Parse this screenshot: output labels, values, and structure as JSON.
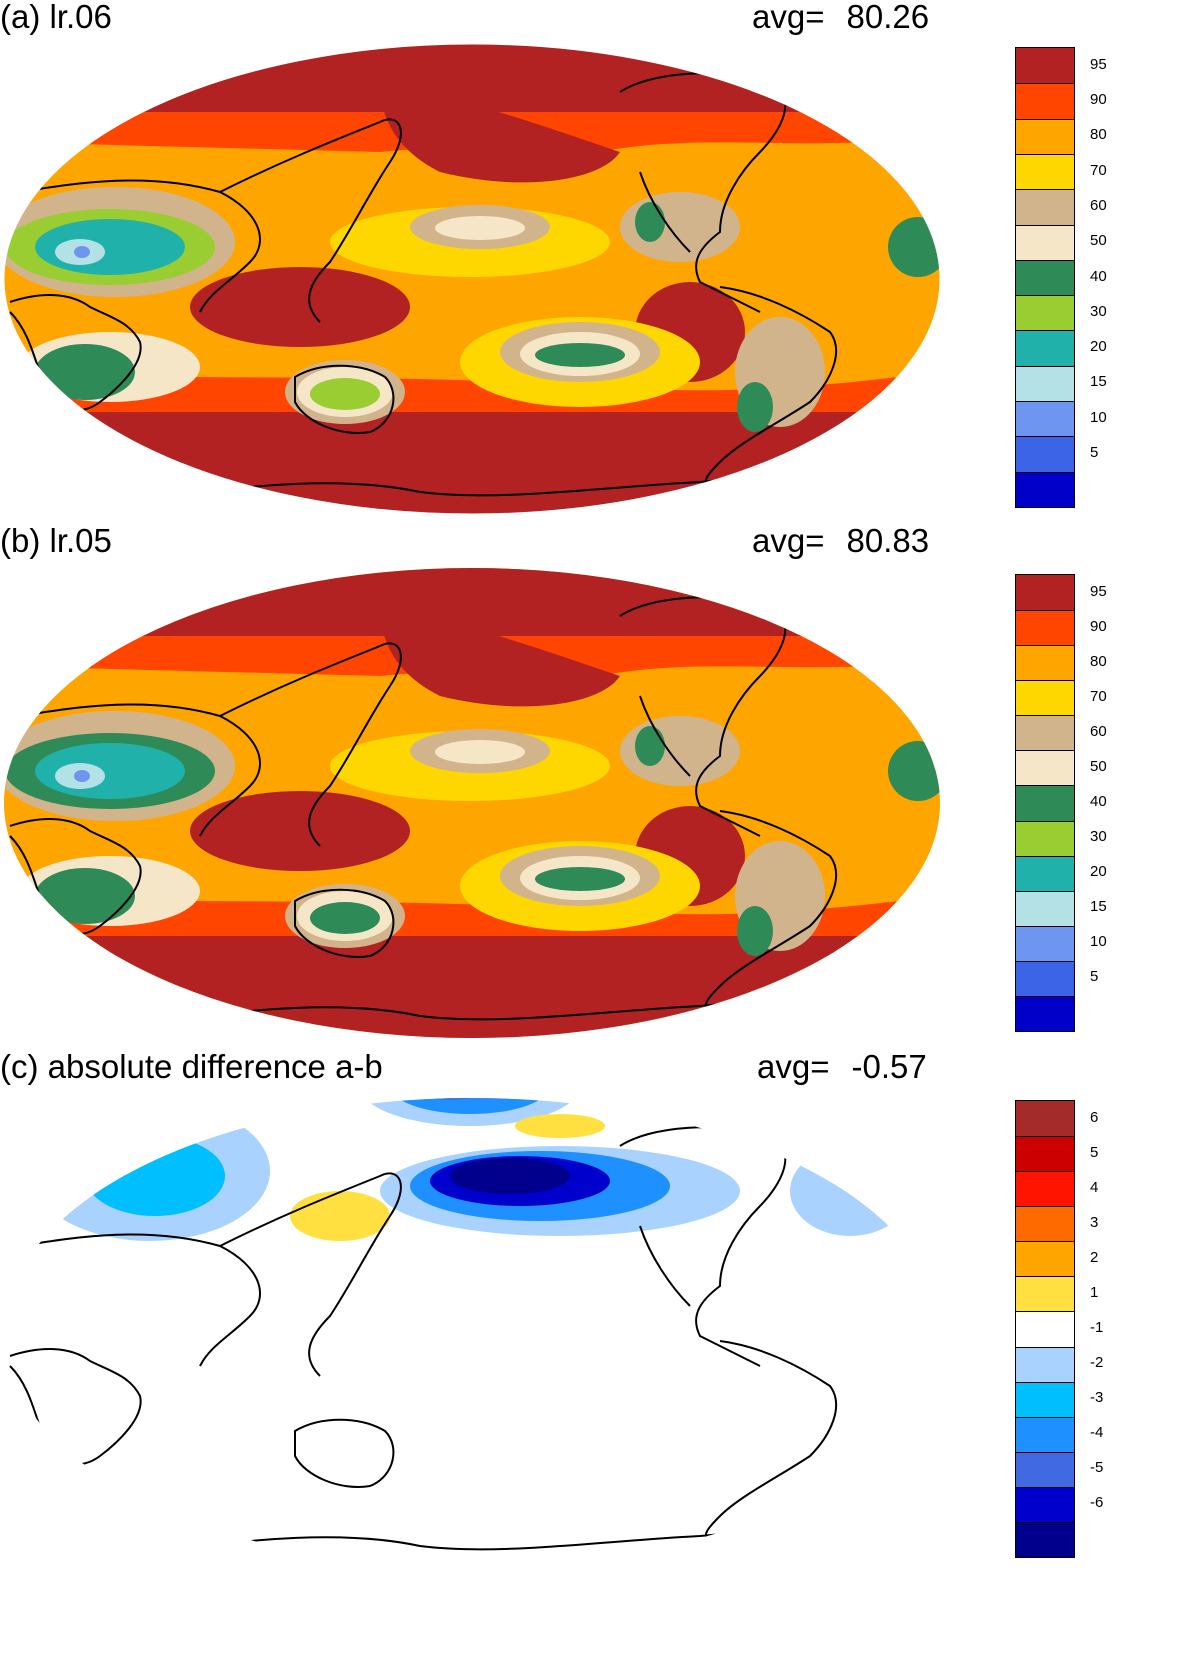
{
  "panels": [
    {
      "id": "a",
      "title": "(a) lr.06",
      "avg_label": "avg=",
      "avg_value": "80.26",
      "colorbar": {
        "colors": [
          "#0000c8",
          "#3c64e6",
          "#6e96f0",
          "#b4e1e6",
          "#20b2aa",
          "#9acd32",
          "#2e8b57",
          "#f5e6c8",
          "#d2b48c",
          "#ffd700",
          "#ffa500",
          "#ff4500",
          "#b22222"
        ],
        "labels": [
          "5",
          "10",
          "15",
          "20",
          "30",
          "40",
          "50",
          "60",
          "70",
          "80",
          "90",
          "95"
        ]
      }
    },
    {
      "id": "b",
      "title": "(b) lr.05",
      "avg_label": "avg=",
      "avg_value": "80.83",
      "colorbar": {
        "colors": [
          "#0000c8",
          "#3c64e6",
          "#6e96f0",
          "#b4e1e6",
          "#20b2aa",
          "#9acd32",
          "#2e8b57",
          "#f5e6c8",
          "#d2b48c",
          "#ffd700",
          "#ffa500",
          "#ff4500",
          "#b22222"
        ],
        "labels": [
          "5",
          "10",
          "15",
          "20",
          "30",
          "40",
          "50",
          "60",
          "70",
          "80",
          "90",
          "95"
        ]
      }
    },
    {
      "id": "c",
      "title": "(c) absolute difference a-b",
      "avg_label": "avg=",
      "avg_value": "-0.57",
      "colorbar": {
        "colors": [
          "#00008c",
          "#0000cd",
          "#4169e1",
          "#1e90ff",
          "#00bfff",
          "#aad2ff",
          "#ffffff",
          "#ffe040",
          "#ffa500",
          "#ff6a00",
          "#ff1400",
          "#cd0000",
          "#a52a2a"
        ],
        "labels": [
          "-6",
          "-5",
          "-4",
          "-3",
          "-2",
          "-1",
          "1",
          "2",
          "3",
          "4",
          "5",
          "6"
        ]
      }
    }
  ]
}
